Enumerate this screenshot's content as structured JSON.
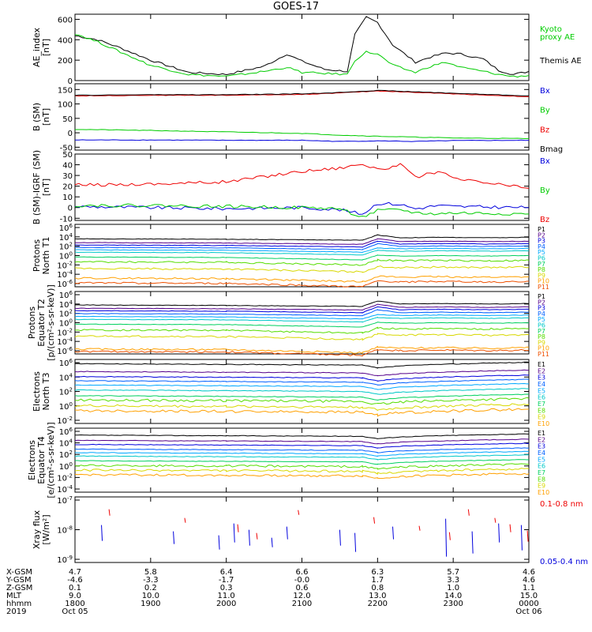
{
  "title": "GOES-17",
  "colors": {
    "black": "#000000",
    "red": "#ee0000",
    "green": "#00cc00",
    "blue": "#0000dd",
    "flux": [
      "#000000",
      "#55008a",
      "#0000dd",
      "#0060ff",
      "#00a8ff",
      "#00c8c8",
      "#00d060",
      "#55dd00",
      "#d8d800",
      "#ffa000",
      "#ee5000",
      "#cc0000"
    ]
  },
  "panels": [
    {
      "id": "ae",
      "ylabel": [
        "AE_index",
        "[nT]"
      ],
      "yticks": [
        "600",
        "400",
        "200",
        "0"
      ],
      "legend": [
        {
          "text": "Kyoto",
          "color": "#00cc00"
        },
        {
          "text": "proxy AE",
          "color": "#00cc00"
        },
        {
          "text": "Themis AE",
          "color": "#000000"
        }
      ]
    },
    {
      "id": "bsm",
      "ylabel": [
        "B (SM)",
        "[nT]"
      ],
      "yticks": [
        "150",
        "100",
        "50",
        "0",
        "-50"
      ],
      "legend": [
        {
          "text": "Bx",
          "color": "#0000dd"
        },
        {
          "text": "By",
          "color": "#00cc00"
        },
        {
          "text": "Bz",
          "color": "#ee0000"
        },
        {
          "text": "Bmag",
          "color": "#000000"
        }
      ]
    },
    {
      "id": "bigrf",
      "ylabel": [
        "B (SM)-IGRF (SM)",
        "[nT]"
      ],
      "yticks": [
        "50",
        "40",
        "30",
        "20",
        "10",
        "0",
        "-10"
      ],
      "legend": [
        {
          "text": "Bx",
          "color": "#0000dd"
        },
        {
          "text": "By",
          "color": "#00cc00"
        },
        {
          "text": "Bz",
          "color": "#ee0000"
        }
      ]
    },
    {
      "id": "pt1",
      "ylabel": [
        "Protons",
        "North T1"
      ],
      "yticks": [
        "10^6",
        "10^4",
        "10^2",
        "10^0",
        "10^-2",
        "10^-4",
        "10^-6"
      ],
      "legend_channels": [
        "P1",
        "P2",
        "P3",
        "P4",
        "P5",
        "P6",
        "P7",
        "P8",
        "P9",
        "P10",
        "P11"
      ]
    },
    {
      "id": "pt2",
      "ylabel": [
        "Protons",
        "Equator T2",
        "[p/(cm²-s-sr-keV)]"
      ],
      "yticks": [
        "10^6",
        "10^4",
        "10^2",
        "10^0",
        "10^-2",
        "10^-4",
        "10^-6"
      ],
      "legend_channels": [
        "P1",
        "P2",
        "P3",
        "P4",
        "P5",
        "P6",
        "P7",
        "P8",
        "P9",
        "P10",
        "P11"
      ]
    },
    {
      "id": "et3",
      "ylabel": [
        "Electrons",
        "North T3"
      ],
      "yticks": [
        "10^6",
        "10^4",
        "10^2",
        "10^0",
        "10^-2"
      ],
      "legend_channels": [
        "E1",
        "E2",
        "E3",
        "E4",
        "E5",
        "E6",
        "E7",
        "E8",
        "E9",
        "E10"
      ]
    },
    {
      "id": "et4",
      "ylabel": [
        "Electrons",
        "Equator T4",
        "[e/(cm²-s-sr-keV)]"
      ],
      "yticks": [
        "10^6",
        "10^4",
        "10^2",
        "10^0",
        "10^-2",
        "10^-4"
      ],
      "legend_channels": [
        "E1",
        "E2",
        "E3",
        "E4",
        "E5",
        "E6",
        "E7",
        "E8",
        "E9",
        "E10"
      ]
    },
    {
      "id": "xray",
      "ylabel": [
        "Xray flux",
        "[W/m²]"
      ],
      "yticks": [
        "10^-7",
        "10^-8",
        "10^-9"
      ],
      "legend": [
        {
          "text": "0.1-0.8 nm",
          "color": "#ee0000"
        },
        {
          "text": "0.05-0.4 nm",
          "color": "#0000dd"
        }
      ]
    }
  ],
  "xaxis": {
    "row_labels": [
      "X-GSM",
      "Y-GSM",
      "Z-GSM",
      "MLT",
      "hhmm",
      "2019"
    ],
    "columns": [
      [
        "4.7",
        "-4.6",
        "0.1",
        "9.0",
        "1800",
        "Oct 05"
      ],
      [
        "5.8",
        "-3.3",
        "0.2",
        "10.0",
        "1900",
        ""
      ],
      [
        "6.4",
        "-1.7",
        "0.3",
        "11.0",
        "2000",
        ""
      ],
      [
        "6.6",
        "-0.0",
        "0.6",
        "12.0",
        "2100",
        ""
      ],
      [
        "6.3",
        "1.7",
        "0.8",
        "13.0",
        "2200",
        ""
      ],
      [
        "5.7",
        "3.3",
        "1.0",
        "14.0",
        "2300",
        ""
      ],
      [
        "4.6",
        "4.6",
        "1.1",
        "15.0",
        "0000",
        "Oct 06"
      ]
    ]
  },
  "chart_data": {
    "type": "line",
    "title": "GOES-17",
    "x_hours": [
      18,
      19,
      20,
      21,
      22,
      23,
      24
    ],
    "xlim_hhmm": [
      "1800",
      "0000"
    ],
    "panels": [
      {
        "name": "AE index",
        "ylim": [
          0,
          650
        ],
        "series": [
          {
            "name": "Themis AE",
            "color": "#000000",
            "x": [
              18.0,
              18.3,
              18.6,
              19.0,
              19.5,
              20.0,
              20.5,
              20.8,
              21.0,
              21.3,
              21.6,
              21.7,
              21.85,
              22.0,
              22.2,
              22.5,
              22.7,
              22.9,
              23.1,
              23.4,
              23.6,
              23.8,
              24.0
            ],
            "y": [
              440,
              400,
              320,
              200,
              80,
              60,
              140,
              260,
              190,
              110,
              90,
              450,
              620,
              570,
              350,
              180,
              230,
              270,
              260,
              210,
              100,
              60,
              90
            ]
          },
          {
            "name": "Kyoto proxy AE",
            "color": "#00cc00",
            "x": [
              18.0,
              18.3,
              18.6,
              19.0,
              19.5,
              20.0,
              20.5,
              20.8,
              21.0,
              21.3,
              21.6,
              21.7,
              21.85,
              22.0,
              22.2,
              22.5,
              22.7,
              22.9,
              23.1,
              23.4,
              23.6,
              23.8,
              24.0
            ],
            "y": [
              460,
              380,
              280,
              150,
              60,
              40,
              90,
              130,
              80,
              70,
              60,
              200,
              280,
              260,
              150,
              80,
              140,
              180,
              130,
              90,
              60,
              40,
              50
            ]
          }
        ]
      },
      {
        "name": "B (SM)",
        "ylim": [
          -60,
          170
        ],
        "series": [
          {
            "name": "Bx",
            "color": "#0000dd",
            "x": [
              18,
              19,
              20,
              21,
              21.5,
              22,
              22.5,
              23,
              24
            ],
            "y": [
              -25,
              -25,
              -26,
              -26,
              -30,
              -28,
              -30,
              -27,
              -26
            ]
          },
          {
            "name": "By",
            "color": "#00cc00",
            "x": [
              18,
              19,
              20,
              21,
              21.5,
              22,
              22.5,
              23,
              24
            ],
            "y": [
              12,
              8,
              3,
              -2,
              -8,
              -12,
              -15,
              -18,
              -20
            ]
          },
          {
            "name": "Bz",
            "color": "#ee0000",
            "x": [
              18,
              19,
              20,
              21,
              21.5,
              22,
              22.5,
              23,
              24
            ],
            "y": [
              128,
              130,
              130,
              133,
              138,
              145,
              140,
              135,
              125
            ]
          },
          {
            "name": "Bmag",
            "color": "#000000",
            "x": [
              18,
              19,
              20,
              21,
              21.5,
              22,
              22.5,
              23,
              24
            ],
            "y": [
              130,
              132,
              132,
              135,
              140,
              147,
              142,
              137,
              128
            ]
          }
        ]
      },
      {
        "name": "B (SM)-IGRF (SM)",
        "ylim": [
          -12,
          50
        ],
        "series": [
          {
            "name": "Bx",
            "color": "#0000dd",
            "x": [
              18,
              19,
              20,
              21,
              21.5,
              21.8,
              22.0,
              22.3,
              22.5,
              22.8,
              23,
              24
            ],
            "y": [
              1,
              0,
              -1,
              0,
              -2,
              -6,
              4,
              3,
              -1,
              2,
              1,
              0
            ]
          },
          {
            "name": "By",
            "color": "#00cc00",
            "x": [
              18,
              19,
              20,
              21,
              21.5,
              21.8,
              22.0,
              22.3,
              22.5,
              22.8,
              23,
              24
            ],
            "y": [
              2,
              2,
              1,
              0,
              -1,
              -9,
              -3,
              -2,
              -5,
              -6,
              -5,
              -6
            ]
          },
          {
            "name": "Bz",
            "color": "#ee0000",
            "x": [
              18,
              19,
              20,
              21,
              21.5,
              21.8,
              22.0,
              22.3,
              22.5,
              22.8,
              23,
              24
            ],
            "y": [
              21,
              22,
              24,
              34,
              37,
              41,
              35,
              40,
              28,
              34,
              27,
              18
            ]
          }
        ]
      },
      {
        "name": "Protons North T1",
        "ylim_log10": [
          -7,
          6
        ],
        "log10_levels_at_18": [
          3,
          2.2,
          1.7,
          1.2,
          0.7,
          0.2,
          -0.8,
          -1.8,
          -3.2,
          -5.2,
          -6.2
        ]
      },
      {
        "name": "Protons Equator T2",
        "ylim_log10": [
          -7,
          6
        ],
        "log10_levels_at_18": [
          3.2,
          2.5,
          2,
          1.4,
          0.8,
          0.2,
          -0.8,
          -2,
          -3.3,
          -6,
          -6.5
        ]
      },
      {
        "name": "Electrons North T3",
        "ylim_log10": [
          -3,
          6
        ],
        "log10_levels_at_18": [
          5.4,
          4.3,
          3.6,
          3.0,
          2.4,
          1.7,
          0.9,
          0.3,
          -0.5,
          -1.2
        ]
      },
      {
        "name": "Electrons Equator T4",
        "ylim_log10": [
          -5,
          6
        ],
        "log10_levels_at_18": [
          4.8,
          3.9,
          3.2,
          2.4,
          1.8,
          1.2,
          0.4,
          -0.4,
          -1.2,
          -2.0
        ]
      },
      {
        "name": "Xray flux",
        "ylim_log10": [
          -9,
          -7
        ],
        "series": [
          {
            "name": "0.1-0.8 nm",
            "color": "#ee0000"
          },
          {
            "name": "0.05-0.4 nm",
            "color": "#0000dd"
          }
        ]
      }
    ]
  }
}
